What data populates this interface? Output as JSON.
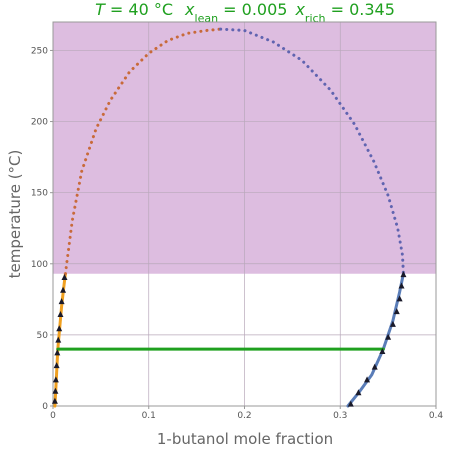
{
  "title": {
    "t_var": "T",
    "t_value": " = 40 °C",
    "x_var_1": "x",
    "sub_1": "lean",
    "val_1": " = 0.005",
    "x_var_2": "x",
    "sub_2": "rich",
    "val_2": " = 0.345"
  },
  "chart_data": {
    "type": "line",
    "xlabel": "1-butanol mole fraction",
    "ylabel": "temperature (°C)",
    "xlim": [
      0,
      0.4
    ],
    "ylim": [
      0,
      270
    ],
    "xticks": [
      0,
      0.1,
      0.2,
      0.3,
      0.4
    ],
    "xtick_labels": [
      "0",
      "0.1",
      "0.2",
      "0.3",
      "0.4"
    ],
    "yticks": [
      0,
      50,
      100,
      150,
      200,
      250
    ],
    "ytick_labels": [
      "0",
      "50",
      "100",
      "150",
      "200",
      "250"
    ],
    "grid": true,
    "shaded_region": {
      "y_from": 93,
      "y_to": 270,
      "color": "#ddbde0"
    },
    "series": [
      {
        "role": "lean-branch-solid",
        "style": "solid",
        "color": "#f0a020",
        "x": [
          0.002,
          0.0035,
          0.005,
          0.007,
          0.009,
          0.011,
          0.013
        ],
        "y": [
          0,
          20,
          40,
          55,
          70,
          82,
          93
        ]
      },
      {
        "role": "rich-branch-solid",
        "style": "solid",
        "color": "#5a7db8",
        "x": [
          0.308,
          0.32,
          0.333,
          0.345,
          0.355,
          0.362,
          0.366
        ],
        "y": [
          0,
          10,
          22,
          40,
          60,
          80,
          93
        ]
      },
      {
        "role": "lean-branch-dotted",
        "style": "dotted",
        "color": "#c86a3a",
        "x": [
          0.013,
          0.02,
          0.03,
          0.045,
          0.06,
          0.08,
          0.1,
          0.12,
          0.14,
          0.16,
          0.175
        ],
        "y": [
          93,
          130,
          165,
          195,
          215,
          235,
          248,
          257,
          262,
          264,
          265
        ]
      },
      {
        "role": "rich-branch-dotted",
        "style": "dotted",
        "color": "#6064b0",
        "x": [
          0.175,
          0.2,
          0.23,
          0.26,
          0.29,
          0.315,
          0.335,
          0.35,
          0.36,
          0.365,
          0.366
        ],
        "y": [
          265,
          264,
          256,
          243,
          222,
          198,
          172,
          148,
          125,
          106,
          93
        ]
      },
      {
        "role": "tie-line",
        "style": "solid",
        "color": "#1fa01f",
        "x": [
          0.005,
          0.345
        ],
        "y": [
          40,
          40
        ]
      }
    ],
    "markers": [
      {
        "x": 0.002,
        "y": 3
      },
      {
        "x": 0.0025,
        "y": 10
      },
      {
        "x": 0.003,
        "y": 18
      },
      {
        "x": 0.0038,
        "y": 28
      },
      {
        "x": 0.0045,
        "y": 37
      },
      {
        "x": 0.0055,
        "y": 46
      },
      {
        "x": 0.0065,
        "y": 54
      },
      {
        "x": 0.0078,
        "y": 64
      },
      {
        "x": 0.009,
        "y": 73
      },
      {
        "x": 0.0105,
        "y": 81
      },
      {
        "x": 0.012,
        "y": 90
      },
      {
        "x": 0.311,
        "y": 1
      },
      {
        "x": 0.319,
        "y": 9
      },
      {
        "x": 0.328,
        "y": 18
      },
      {
        "x": 0.336,
        "y": 27
      },
      {
        "x": 0.344,
        "y": 38
      },
      {
        "x": 0.35,
        "y": 48
      },
      {
        "x": 0.355,
        "y": 57
      },
      {
        "x": 0.359,
        "y": 66
      },
      {
        "x": 0.362,
        "y": 75
      },
      {
        "x": 0.364,
        "y": 84
      },
      {
        "x": 0.366,
        "y": 92
      }
    ]
  }
}
